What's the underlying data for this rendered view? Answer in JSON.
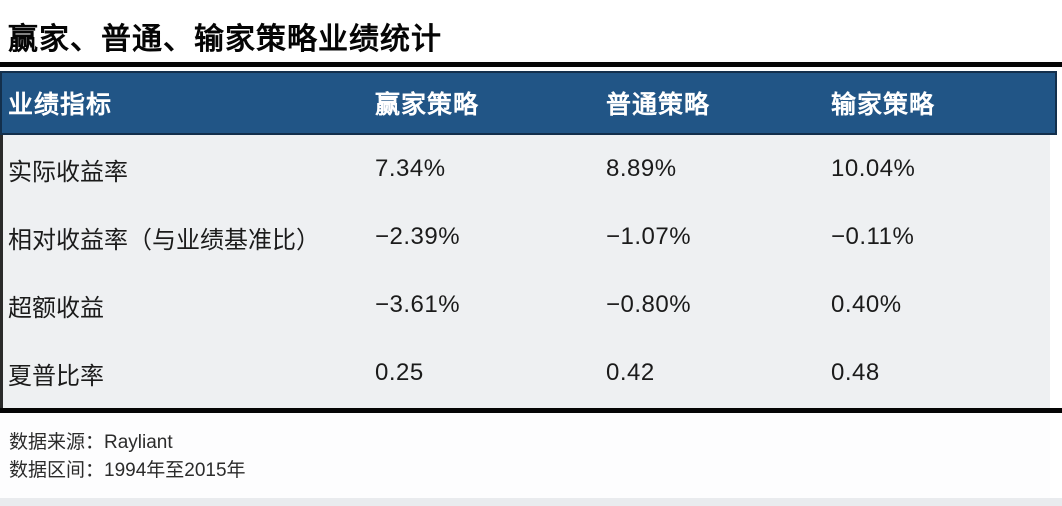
{
  "title": "赢家、普通、输家策略业绩统计",
  "colors": {
    "header_bg": "#215586",
    "header_border": "#132f4c",
    "header_text": "#ffffff",
    "body_bg": "#eef0f2",
    "rule": "#050505"
  },
  "table": {
    "headers": [
      "业绩指标",
      "赢家策略",
      "普通策略",
      "输家策略"
    ],
    "rows": [
      {
        "label": "实际收益率",
        "values": [
          "7.34%",
          "8.89%",
          "10.04%"
        ]
      },
      {
        "label": "相对收益率（与业绩基准比）",
        "values": [
          "−2.39%",
          "−1.07%",
          "−0.11%"
        ]
      },
      {
        "label": "超额收益",
        "values": [
          "−3.61%",
          "−0.80%",
          "0.40%"
        ]
      },
      {
        "label": "夏普比率",
        "values": [
          "0.25",
          "0.42",
          "0.48"
        ]
      }
    ]
  },
  "footer": {
    "source": "数据来源：Rayliant",
    "period": "数据区间：1994年至2015年"
  },
  "chart_data": {
    "type": "table",
    "title": "赢家、普通、输家策略业绩统计",
    "columns": [
      "业绩指标",
      "赢家策略",
      "普通策略",
      "输家策略"
    ],
    "rows": [
      [
        "实际收益率",
        "7.34%",
        "8.89%",
        "10.04%"
      ],
      [
        "相对收益率（与业绩基准比）",
        "−2.39%",
        "−1.07%",
        "−0.11%"
      ],
      [
        "超额收益",
        "−3.61%",
        "−0.80%",
        "0.40%"
      ],
      [
        "夏普比率",
        "0.25",
        "0.42",
        "0.48"
      ]
    ],
    "numeric_series": [
      {
        "name": "赢家策略",
        "values": [
          7.34,
          -2.39,
          -3.61,
          0.25
        ]
      },
      {
        "name": "普通策略",
        "values": [
          8.89,
          -1.07,
          -0.8,
          0.42
        ]
      },
      {
        "name": "输家策略",
        "values": [
          10.04,
          -0.11,
          0.4,
          0.48
        ]
      }
    ],
    "notes": [
      "数据来源：Rayliant",
      "数据区间：1994年至2015年"
    ]
  }
}
